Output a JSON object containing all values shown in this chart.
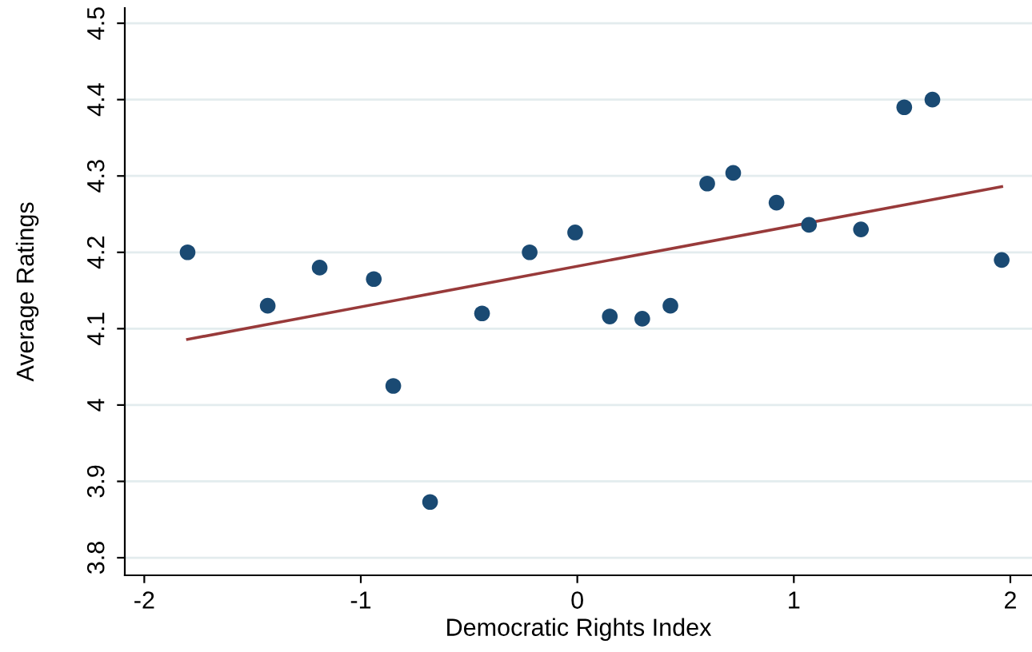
{
  "chart_data": {
    "type": "scatter",
    "xlabel": "Democratic Rights Index",
    "ylabel": "Average Ratings",
    "xlim": [
      -2.09,
      2.1
    ],
    "ylim": [
      3.777,
      4.52
    ],
    "xticks": [
      -2,
      -1,
      0,
      1,
      2
    ],
    "yticks": [
      3.8,
      3.9,
      4,
      4.1,
      4.2,
      4.3,
      4.4,
      4.5
    ],
    "grid": "y",
    "series": [
      {
        "marker": "circle",
        "color": "#1a4a73",
        "x": [
          -1.8,
          -1.43,
          -1.19,
          -0.94,
          -0.85,
          -0.68,
          -0.44,
          -0.22,
          -0.01,
          0.15,
          0.3,
          0.43,
          0.6,
          0.72,
          0.92,
          1.07,
          1.31,
          1.51,
          1.64,
          1.96
        ],
        "values": [
          4.2,
          4.13,
          4.18,
          4.165,
          4.025,
          3.873,
          4.12,
          4.2,
          4.226,
          4.116,
          4.113,
          4.13,
          4.29,
          4.304,
          4.265,
          4.236,
          4.23,
          4.39,
          4.4,
          4.19
        ]
      },
      {
        "type": "line",
        "color": "#983a3a",
        "x": [
          -1.8,
          1.96
        ],
        "values": [
          4.086,
          4.286
        ]
      }
    ]
  }
}
